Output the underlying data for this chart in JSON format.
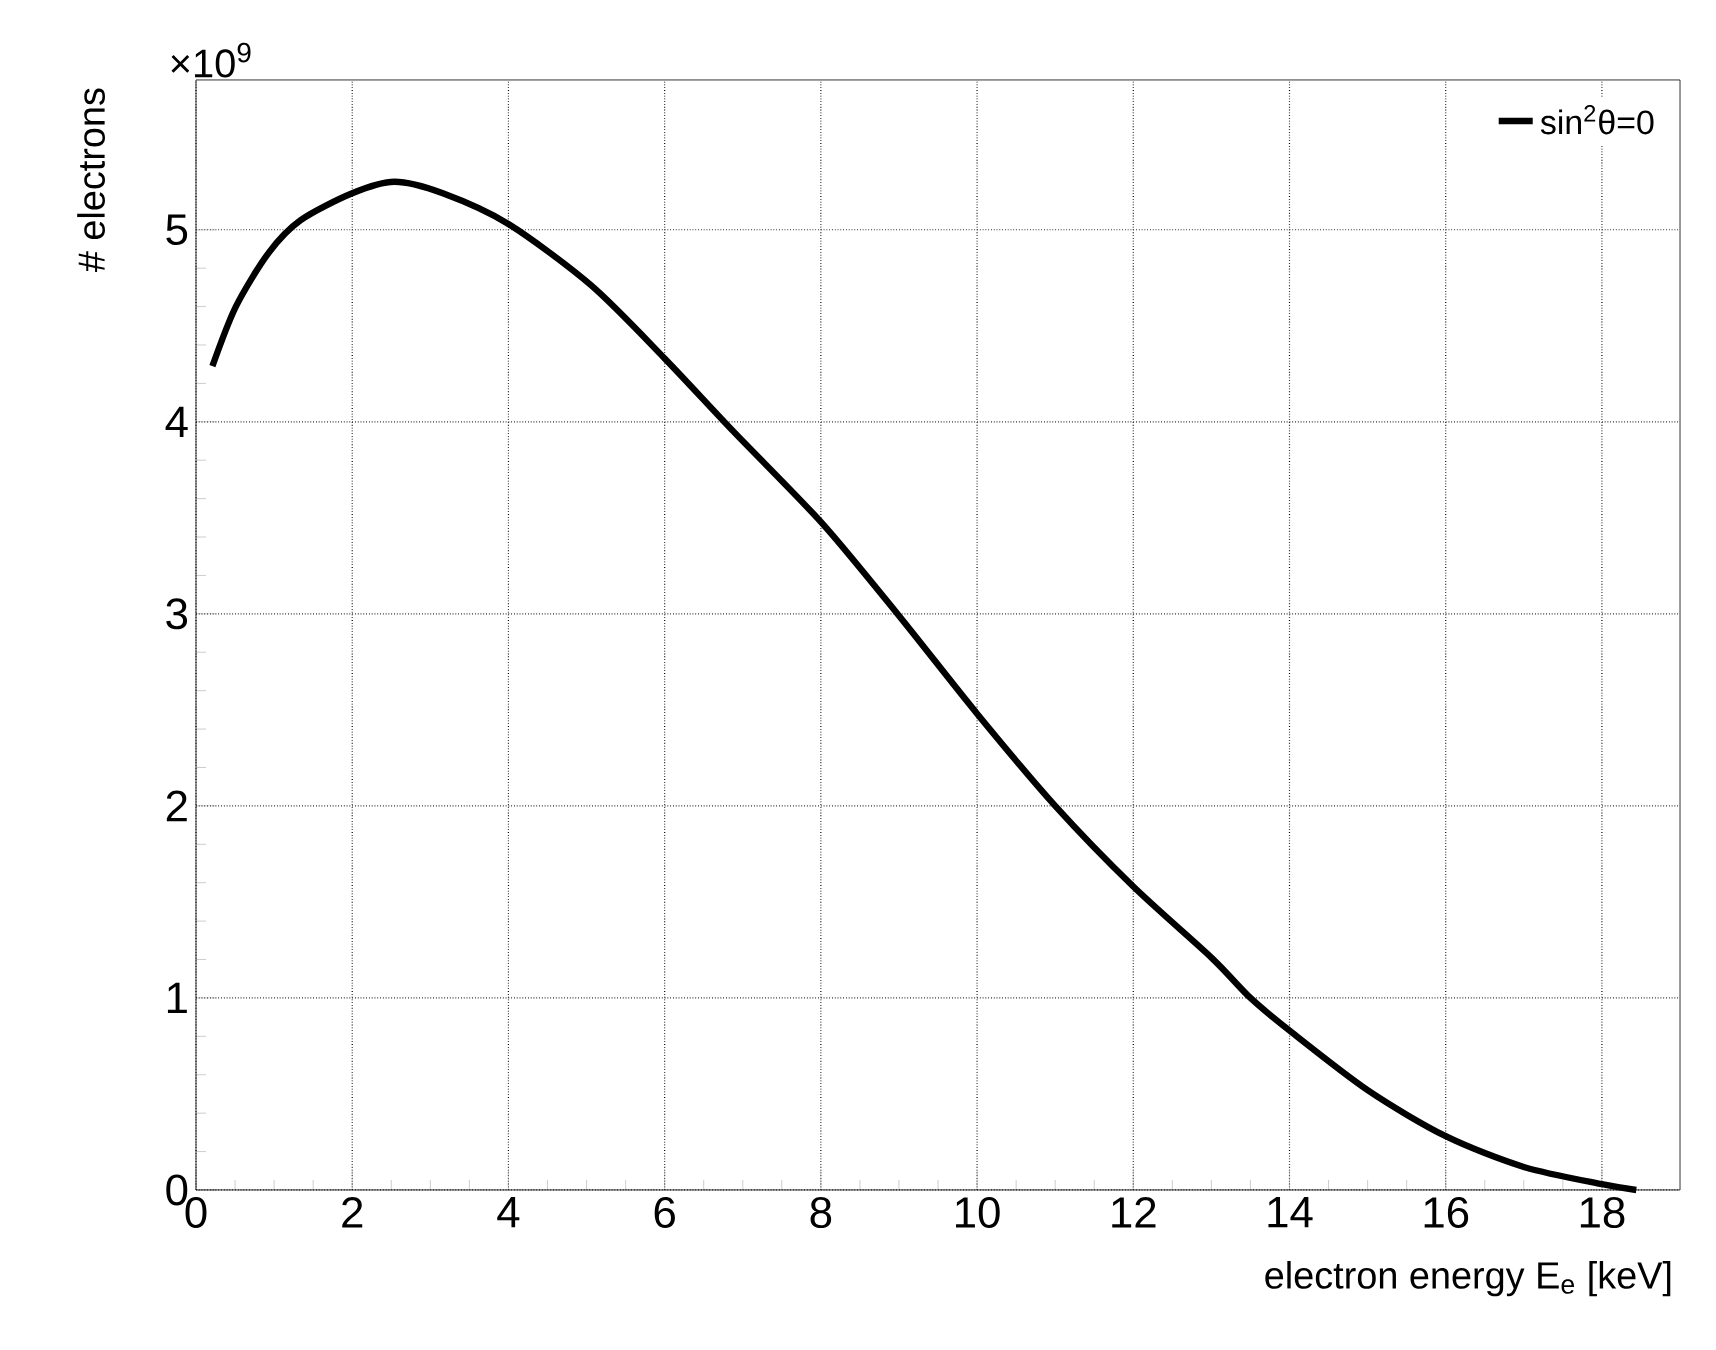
{
  "chart_data": {
    "type": "line",
    "xlabel": "electron energy E$_{e}$ [keV]",
    "ylabel": "# electrons",
    "annotations": [
      "×10$^{9}$"
    ],
    "x": [
      0.21,
      0.51,
      0.93,
      1.34,
      2.0,
      2.54,
      3.16,
      4.0,
      5.06,
      6.0,
      6.88,
      8.02,
      9.0,
      10.0,
      11.0,
      12.0,
      13.0,
      13.5,
      14.0,
      15.0,
      16.0,
      17.0,
      18.0,
      18.44
    ],
    "series": [
      {
        "name": "sin$^{2}$θ=0",
        "color": "#000000",
        "values": [
          4.29,
          4.6,
          4.88,
          5.05,
          5.19,
          5.25,
          5.19,
          5.03,
          4.71,
          4.33,
          3.95,
          3.47,
          2.99,
          2.48,
          2.0,
          1.58,
          1.21,
          1.0,
          0.83,
          0.52,
          0.28,
          0.12,
          0.03,
          0.0
        ]
      }
    ],
    "xlim": [
      0,
      19
    ],
    "ylim": [
      0,
      5.78
    ],
    "xticks": [
      0,
      2,
      4,
      6,
      8,
      10,
      12,
      14,
      16,
      18
    ],
    "yticks": [
      0,
      1,
      2,
      3,
      4,
      5
    ],
    "grid": true,
    "legend": "top right",
    "marker": "none",
    "line_style": "solid"
  }
}
